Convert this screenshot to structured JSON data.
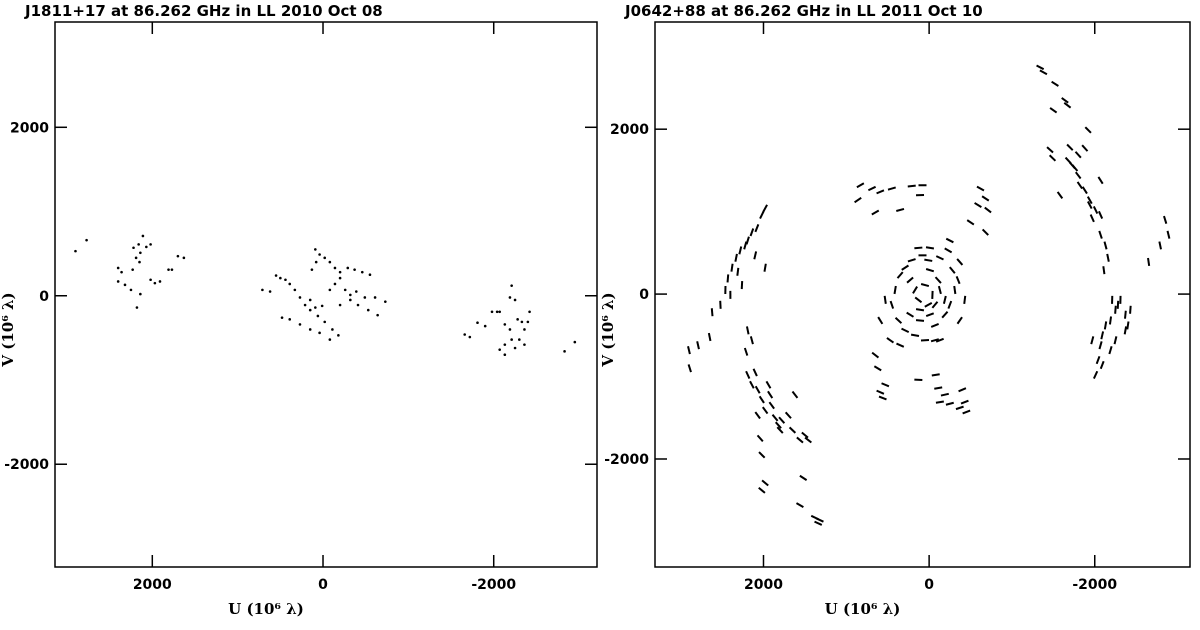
{
  "chart_data": [
    {
      "type": "scatter",
      "marker": "dot",
      "color": "#000000",
      "title": "J1811+17 at 86.262 GHz in LL  2010 Oct 08",
      "xlabel": "U (10⁶ λ)",
      "ylabel": "V (10⁶ λ)",
      "xlim": [
        3140,
        -3210
      ],
      "ylim": [
        -3220,
        3250
      ],
      "xticks": [
        2000,
        0,
        -2000
      ],
      "yticks": [
        -2000,
        0,
        2000
      ],
      "x": [
        2900,
        2770,
        2400,
        2360,
        2320,
        2230,
        2190,
        2160,
        2140,
        2110,
        2070,
        2020,
        2250,
        2180,
        2140,
        2020,
        1970,
        1910,
        1810,
        1770,
        1700,
        1630,
        2400,
        2220,
        2150,
        710,
        620,
        550,
        500,
        440,
        390,
        330,
        270,
        210,
        150,
        60,
        -20,
        -110,
        -180,
        90,
        40,
        -20,
        -80,
        -140,
        -200,
        -290,
        -370,
        -460,
        -550,
        480,
        390,
        270,
        150,
        40,
        -80,
        -200,
        -320,
        -410,
        -530,
        -640,
        150,
        90,
        10,
        -80,
        -140,
        -200,
        -260,
        -320,
        -390,
        -490,
        -610,
        -730,
        80,
        130,
        -1660,
        -1720,
        -1810,
        -1900,
        -1980,
        -2040,
        -2070,
        -2210,
        -2190,
        -2250,
        -2280,
        -2330,
        -2360,
        -2400,
        -2420,
        -2190,
        -2130,
        -2070,
        -2130,
        -2250,
        -2210,
        -2300,
        -2360,
        -2130,
        -2830,
        -2950
      ],
      "values": [
        530,
        660,
        330,
        280,
        130,
        310,
        450,
        610,
        510,
        710,
        580,
        610,
        70,
        -140,
        20,
        190,
        150,
        170,
        310,
        310,
        470,
        450,
        170,
        570,
        400,
        70,
        50,
        240,
        210,
        190,
        140,
        70,
        -20,
        -110,
        -170,
        -240,
        -310,
        -400,
        -470,
        550,
        490,
        450,
        400,
        330,
        280,
        330,
        310,
        280,
        250,
        -260,
        -280,
        -340,
        -400,
        -440,
        -520,
        -110,
        -50,
        -110,
        -170,
        -230,
        -50,
        -140,
        -120,
        70,
        140,
        210,
        70,
        10,
        50,
        -20,
        -20,
        -70,
        400,
        310,
        -460,
        -490,
        -320,
        -360,
        -190,
        -190,
        -190,
        120,
        -20,
        -50,
        -280,
        -310,
        -400,
        -310,
        -190,
        -400,
        -580,
        -640,
        -700,
        -620,
        -520,
        -520,
        -580,
        -340,
        -660,
        -550
      ]
    },
    {
      "type": "scatter",
      "marker": "dash",
      "color": "#000000",
      "title": "J0642+88 at 86.262 GHz in LL  2011 Oct 10",
      "xlabel": "U (10⁶ λ)",
      "ylabel": "V (10⁶ λ)",
      "xlim": [
        3310,
        -3150
      ],
      "ylim": [
        -3310,
        3300
      ],
      "xticks": [
        2000,
        0,
        -2000
      ],
      "yticks": [
        -2000,
        0,
        2000
      ],
      "x": [
        2900,
        2890,
        2790,
        2650,
        2620,
        2520,
        2460,
        2430,
        2380,
        2330,
        2280,
        2220,
        2190,
        2140,
        2080,
        2020,
        1980,
        1980,
        2100,
        2310,
        2260,
        2400,
        2190,
        2140,
        2210,
        2190,
        2140,
        2100,
        2070,
        2020,
        1980,
        1920,
        1900,
        1860,
        1820,
        1800,
        1780,
        1700,
        1650,
        1620,
        1500,
        1460,
        1560,
        2040,
        2020,
        1980,
        2020,
        1560,
        1520,
        1380,
        1340,
        2070,
        1940,
        830,
        690,
        590,
        860,
        650,
        450,
        210,
        80,
        110,
        350,
        -620,
        -680,
        -710,
        -590,
        -500,
        -680,
        -250,
        290,
        230,
        170,
        130,
        110,
        50,
        -10,
        -40,
        -70,
        -110,
        -130,
        -190,
        10,
        80,
        210,
        350,
        410,
        450,
        370,
        290,
        170,
        50,
        -70,
        -190,
        -250,
        -310,
        -280,
        -370,
        -350,
        -230,
        -130,
        130,
        -10,
        530,
        590,
        470,
        -70,
        -370,
        -430,
        -130,
        350,
        10,
        110,
        -10,
        230,
        650,
        620,
        590,
        530,
        560,
        130,
        -80,
        -110,
        -190,
        -250,
        -400,
        -430,
        -450,
        -130,
        -370,
        -1340,
        -1380,
        -1520,
        -1500,
        -1640,
        -1670,
        -1700,
        -1800,
        -1920,
        -1880,
        -1460,
        -1490,
        -1680,
        -1730,
        -1760,
        -1800,
        -1820,
        -1880,
        -1940,
        -2010,
        -2070,
        -1970,
        -1580,
        -2070,
        -2130,
        -2160,
        -2110,
        -2070,
        -1940,
        -2010,
        -2040,
        -2070,
        -2090,
        -2130,
        -2190,
        -2250,
        -2280,
        -2310,
        -2370,
        -2370,
        -2250,
        -2190,
        -2090,
        -2400,
        -2210,
        -1970,
        -2430,
        -2650,
        -2790,
        -2850,
        -2890,
        1320
      ],
      "values": [
        -680,
        -900,
        -620,
        -520,
        -220,
        -130,
        50,
        190,
        320,
        440,
        530,
        590,
        650,
        750,
        800,
        960,
        1040,
        320,
        470,
        270,
        110,
        -10,
        -440,
        -560,
        -700,
        -980,
        -1100,
        -950,
        -1160,
        -1280,
        -1410,
        -1220,
        -1350,
        -1500,
        -1590,
        -1650,
        -1530,
        -1470,
        -1650,
        -1220,
        -1710,
        -1770,
        -1770,
        -1750,
        -1950,
        -2290,
        -2380,
        -2560,
        -2230,
        -2710,
        -2780,
        -1470,
        -1100,
        1320,
        1280,
        1240,
        1140,
        990,
        1280,
        1310,
        1320,
        1200,
        1020,
        1280,
        1160,
        1020,
        1080,
        870,
        750,
        650,
        320,
        170,
        50,
        -70,
        -190,
        110,
        290,
        -10,
        -130,
        170,
        50,
        -70,
        410,
        470,
        410,
        230,
        50,
        -130,
        -320,
        -440,
        -500,
        -560,
        -380,
        -250,
        -130,
        50,
        290,
        390,
        170,
        530,
        440,
        560,
        560,
        -70,
        -320,
        -560,
        -560,
        -320,
        -70,
        -560,
        -620,
        -130,
        -320,
        -250,
        -250,
        -740,
        -900,
        -1190,
        -1100,
        -1260,
        -1040,
        -980,
        -1140,
        -1220,
        -1330,
        -1160,
        -1310,
        -1430,
        -1310,
        -1380,
        2750,
        2690,
        2550,
        2230,
        2350,
        2290,
        1780,
        1690,
        1990,
        1770,
        1750,
        1650,
        1620,
        1560,
        1530,
        1440,
        1320,
        1260,
        1140,
        1020,
        960,
        920,
        1200,
        1380,
        590,
        440,
        290,
        720,
        1080,
        -980,
        -800,
        -620,
        -500,
        -380,
        -320,
        -190,
        -130,
        -70,
        -250,
        -440,
        -560,
        -680,
        -860,
        -380,
        -70,
        -560,
        -190,
        390,
        590,
        900,
        720,
        -2740
      ]
    }
  ]
}
